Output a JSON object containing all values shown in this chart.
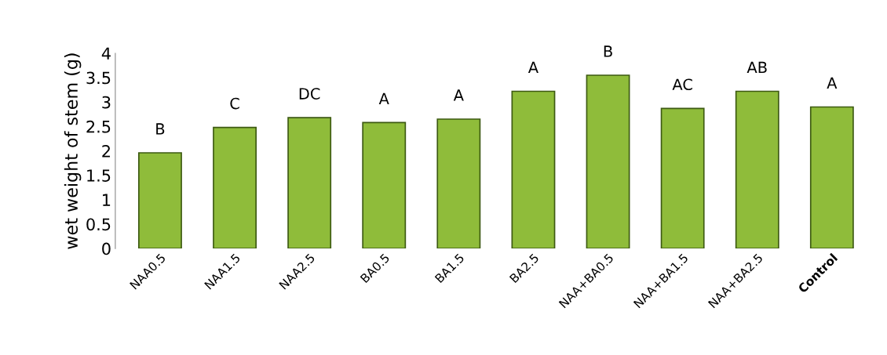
{
  "chart_data": {
    "type": "bar",
    "ylabel": "wet weight of stem (g)",
    "categories": [
      "NAA0.5",
      "NAA1.5",
      "NAA2.5",
      "BA0.5",
      "BA1.5",
      "BA2.5",
      "NAA+BA0.5",
      "NAA+BA1.5",
      "NAA+BA2.5",
      "Control"
    ],
    "values": [
      1.96,
      2.48,
      2.68,
      2.58,
      2.65,
      3.22,
      3.55,
      2.87,
      3.22,
      2.9
    ],
    "value_labels": [
      "B",
      "C",
      "DC",
      "A",
      "A",
      "A",
      "B",
      "AC",
      "AB",
      "A"
    ],
    "color": "#8fbc3a",
    "ylim": [
      0,
      4
    ],
    "yticks": [
      0,
      0.5,
      1,
      1.5,
      2,
      2.5,
      3,
      3.5,
      4
    ],
    "grid": false
  }
}
